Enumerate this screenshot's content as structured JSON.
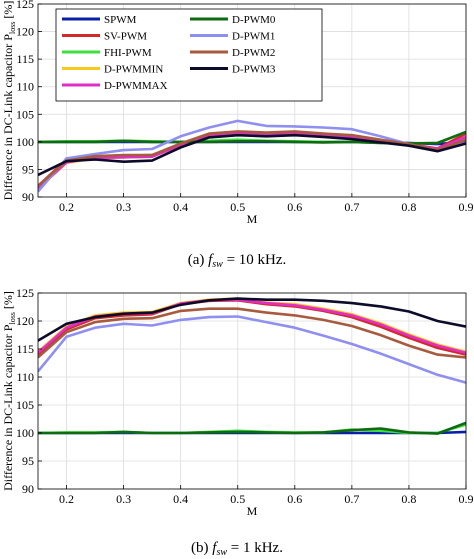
{
  "series_styles": [
    {
      "name": "SPWM",
      "color": "#0a1fa8"
    },
    {
      "name": "SV-PWM",
      "color": "#d12a2a"
    },
    {
      "name": "FHI-PWM",
      "color": "#3ee03e"
    },
    {
      "name": "D-PWMMIN",
      "color": "#f7c81e"
    },
    {
      "name": "D-PWMMAX",
      "color": "#e02fc8"
    },
    {
      "name": "D-PWM0",
      "color": "#0f6b12"
    },
    {
      "name": "D-PWM1",
      "color": "#8f8ff0"
    },
    {
      "name": "D-PWM2",
      "color": "#a85a3e"
    },
    {
      "name": "D-PWM3",
      "color": "#0c0c2a"
    }
  ],
  "chart_data": [
    {
      "type": "line",
      "ylabel": "Difference in DC-Link capacitor P",
      "ylabel_sub": "loss",
      "ylabel_unit": " [%]",
      "xlabel": "M",
      "xlim": [
        0.15,
        0.9
      ],
      "ylim": [
        90,
        125
      ],
      "xticks": [
        0.2,
        0.3,
        0.4,
        0.5,
        0.6,
        0.7,
        0.8,
        0.9
      ],
      "xtick_labels": [
        "0.2",
        "0.3",
        "0.4",
        "0.5",
        "0.6",
        "0.7",
        "0.8",
        "0.9"
      ],
      "yticks": [
        90,
        95,
        100,
        105,
        110,
        115,
        120,
        125
      ],
      "grid": true,
      "legend": "top-left, two columns",
      "caption_prefix": "(a)",
      "caption_var": "f",
      "caption_sub": "sw",
      "caption_rest": " = 10 kHz.",
      "x": [
        0.15,
        0.2,
        0.25,
        0.3,
        0.35,
        0.4,
        0.45,
        0.5,
        0.55,
        0.6,
        0.65,
        0.7,
        0.75,
        0.8,
        0.85,
        0.9
      ],
      "series": [
        {
          "name": "SPWM",
          "values": [
            100,
            100,
            100,
            100,
            100,
            100,
            100,
            100,
            100,
            100,
            100,
            100,
            100,
            99.8,
            99.6,
            100
          ]
        },
        {
          "name": "SV-PWM",
          "values": [
            92,
            96.8,
            97.3,
            97.5,
            97.6,
            99.5,
            101.2,
            101.6,
            101.4,
            101.6,
            101.2,
            101,
            100.2,
            99.6,
            98.8,
            101.5
          ]
        },
        {
          "name": "FHI-PWM",
          "values": [
            100,
            100.1,
            100.1,
            100.2,
            100.1,
            100,
            100.2,
            100.4,
            100.2,
            100.1,
            100,
            100,
            99.8,
            99.7,
            99.8,
            101.8
          ]
        },
        {
          "name": "D-PWMMIN",
          "values": [
            91.5,
            96.2,
            97,
            97.2,
            97.3,
            99.4,
            101,
            101.4,
            101.2,
            101.3,
            101,
            100.7,
            100,
            99.4,
            98.6,
            100.8
          ]
        },
        {
          "name": "D-PWMMAX",
          "values": [
            91.5,
            96.3,
            97.1,
            97.2,
            97.3,
            99.4,
            101,
            101.5,
            101.2,
            101.4,
            101.1,
            100.8,
            100.1,
            99.5,
            98.7,
            100.9
          ]
        },
        {
          "name": "D-PWM0",
          "values": [
            100,
            100,
            100,
            100.2,
            100,
            100,
            100,
            100.1,
            100.1,
            100,
            99.9,
            100,
            99.8,
            99.7,
            99.8,
            101.8
          ]
        },
        {
          "name": "D-PWM1",
          "values": [
            91,
            97,
            97.8,
            98.5,
            98.7,
            101,
            102.6,
            103.8,
            102.9,
            102.8,
            102.6,
            102.3,
            101,
            99.6,
            98.5,
            99.8
          ]
        },
        {
          "name": "D-PWM2",
          "values": [
            92,
            96.6,
            97.4,
            97.6,
            97.6,
            99.7,
            101.5,
            101.9,
            101.7,
            101.9,
            101.5,
            101.2,
            100.4,
            99.6,
            98.5,
            100.4
          ]
        },
        {
          "name": "D-PWM3",
          "values": [
            94,
            96.5,
            96.8,
            96.4,
            96.6,
            99,
            100.8,
            101.2,
            101,
            101.2,
            100.9,
            100.5,
            99.9,
            99.3,
            98.3,
            99.7
          ]
        }
      ]
    },
    {
      "type": "line",
      "ylabel": "Difference in DC-Link capacitor P",
      "ylabel_sub": "loss",
      "ylabel_unit": " [%]",
      "xlabel": "M",
      "xlim": [
        0.15,
        0.9
      ],
      "ylim": [
        90,
        125
      ],
      "xticks": [
        0.2,
        0.3,
        0.4,
        0.5,
        0.6,
        0.7,
        0.8,
        0.9
      ],
      "xtick_labels": [
        "0.2",
        "0.3",
        "0.4",
        "0.5",
        "0.6",
        "0.7",
        "0.8",
        "0.9"
      ],
      "yticks": [
        90,
        95,
        100,
        105,
        110,
        115,
        120,
        125
      ],
      "grid": true,
      "legend": "none",
      "caption_prefix": "(b)",
      "caption_var": "f",
      "caption_sub": "sw",
      "caption_rest": " = 1 kHz.",
      "x": [
        0.15,
        0.2,
        0.25,
        0.3,
        0.35,
        0.4,
        0.45,
        0.5,
        0.55,
        0.6,
        0.65,
        0.7,
        0.75,
        0.8,
        0.85,
        0.9
      ],
      "series": [
        {
          "name": "SPWM",
          "values": [
            100,
            100,
            100,
            100,
            100,
            100,
            100,
            100,
            100,
            100,
            100,
            100,
            100,
            100,
            100,
            100.2
          ]
        },
        {
          "name": "SV-PWM",
          "values": [
            114,
            118.5,
            120.5,
            121,
            121.2,
            123,
            123.6,
            123.7,
            123,
            122.6,
            121.8,
            120.7,
            119,
            117,
            115.2,
            114
          ]
        },
        {
          "name": "FHI-PWM",
          "values": [
            100,
            100.1,
            100.1,
            100.2,
            100,
            100,
            100.2,
            100.4,
            100.2,
            100.1,
            100.1,
            100.6,
            100.4,
            100,
            100,
            101.5
          ]
        },
        {
          "name": "D-PWMMIN",
          "values": [
            114.5,
            119,
            121,
            121.5,
            121.6,
            123.2,
            123.8,
            124,
            123.3,
            123,
            122.2,
            121.2,
            119.6,
            117.6,
            115.8,
            114.5
          ]
        },
        {
          "name": "D-PWMMAX",
          "values": [
            114.3,
            118.8,
            120.8,
            121.3,
            121.4,
            123.1,
            123.7,
            123.8,
            123.2,
            122.8,
            122,
            121,
            119.4,
            117.4,
            115.6,
            114.3
          ]
        },
        {
          "name": "D-PWM0",
          "values": [
            100,
            100,
            100,
            100.2,
            100,
            100,
            100.1,
            100.2,
            100.1,
            100,
            100.1,
            100.5,
            100.8,
            100.1,
            99.9,
            101.8
          ]
        },
        {
          "name": "D-PWM1",
          "values": [
            111,
            117.2,
            118.8,
            119.5,
            119.2,
            120.2,
            120.7,
            120.8,
            119.8,
            118.8,
            117.4,
            115.9,
            114.2,
            112.3,
            110.4,
            109
          ]
        },
        {
          "name": "D-PWM2",
          "values": [
            113.5,
            118,
            119.8,
            120.4,
            120.5,
            121.8,
            122.2,
            122.2,
            121.5,
            121,
            120.2,
            119.1,
            117.5,
            115.6,
            114,
            113.5
          ]
        },
        {
          "name": "D-PWM3",
          "values": [
            116.5,
            119.5,
            120.7,
            121.3,
            121.5,
            122.9,
            123.7,
            124,
            123.8,
            123.8,
            123.6,
            123.2,
            122.6,
            121.7,
            120,
            119
          ]
        }
      ]
    }
  ],
  "legend_order": [
    "SPWM",
    "SV-PWM",
    "FHI-PWM",
    "D-PWMMIN",
    "D-PWMMAX",
    "D-PWM0",
    "D-PWM1",
    "D-PWM2",
    "D-PWM3"
  ]
}
